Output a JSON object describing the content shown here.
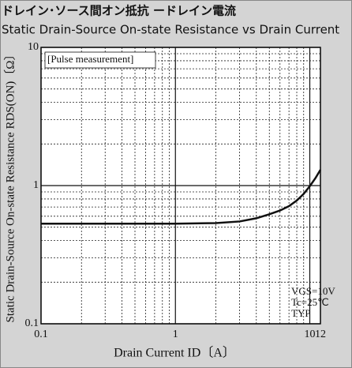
{
  "chart_data": {
    "type": "line",
    "title": "ドレイン･ソース間オン抵抗 ードレイン電流",
    "subtitle": "Static Drain-Source On-state Resistance vs Drain Current",
    "x_label": "Drain Current ID〔A〕",
    "y_label": "Static Drain-Source On-state Resistance RDS(ON)〔Ω〕",
    "annotations": [
      "[Pulse measurement]",
      "VGS=10V",
      "Tc=25℃",
      "TYP"
    ],
    "x_log": true,
    "y_log": true,
    "grid": true,
    "xlim": [
      0.1,
      12
    ],
    "ylim": [
      0.1,
      10
    ],
    "xticks": [
      0.1,
      1,
      10,
      12
    ],
    "yticks": [
      0.1,
      1,
      10
    ],
    "xminor": [
      0.2,
      0.3,
      0.4,
      0.5,
      0.6,
      0.7,
      0.8,
      0.9,
      2,
      3,
      4,
      5,
      6,
      7,
      8,
      9
    ],
    "yminor": [
      0.2,
      0.3,
      0.4,
      0.5,
      0.6,
      0.7,
      0.8,
      0.9,
      2,
      3,
      4,
      5,
      6,
      7,
      8,
      9
    ],
    "x": [
      0.1,
      0.5,
      1,
      2,
      3,
      4,
      5,
      6,
      7,
      8,
      9,
      10,
      11,
      12
    ],
    "series": [
      {
        "color": "#111111",
        "values": [
          0.53,
          0.53,
          0.53,
          0.535,
          0.55,
          0.58,
          0.62,
          0.66,
          0.71,
          0.78,
          0.87,
          0.99,
          1.13,
          1.3
        ]
      }
    ]
  }
}
